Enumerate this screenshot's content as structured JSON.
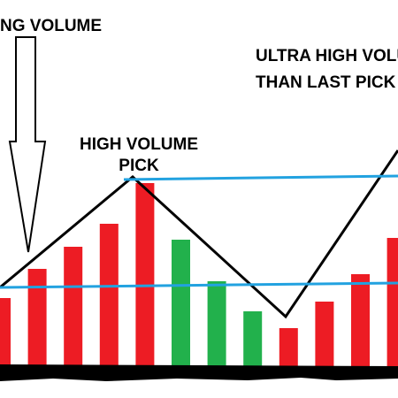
{
  "chart_data": {
    "type": "bar",
    "annotations": [
      "NG VOLUME",
      "HIGH VOLUME",
      "PICK",
      "ULTRA HIGH VOLU",
      "THAN LAST PICK"
    ],
    "values": [
      78,
      111,
      136,
      162,
      208,
      144,
      97,
      63,
      44,
      74,
      105,
      146
    ],
    "colors": [
      "#ed1c24",
      "#ed1c24",
      "#ed1c24",
      "#ed1c24",
      "#ed1c24",
      "#22b14c",
      "#22b14c",
      "#22b14c",
      "#ed1c24",
      "#ed1c24",
      "#ed1c24",
      "#ed1c24"
    ]
  }
}
